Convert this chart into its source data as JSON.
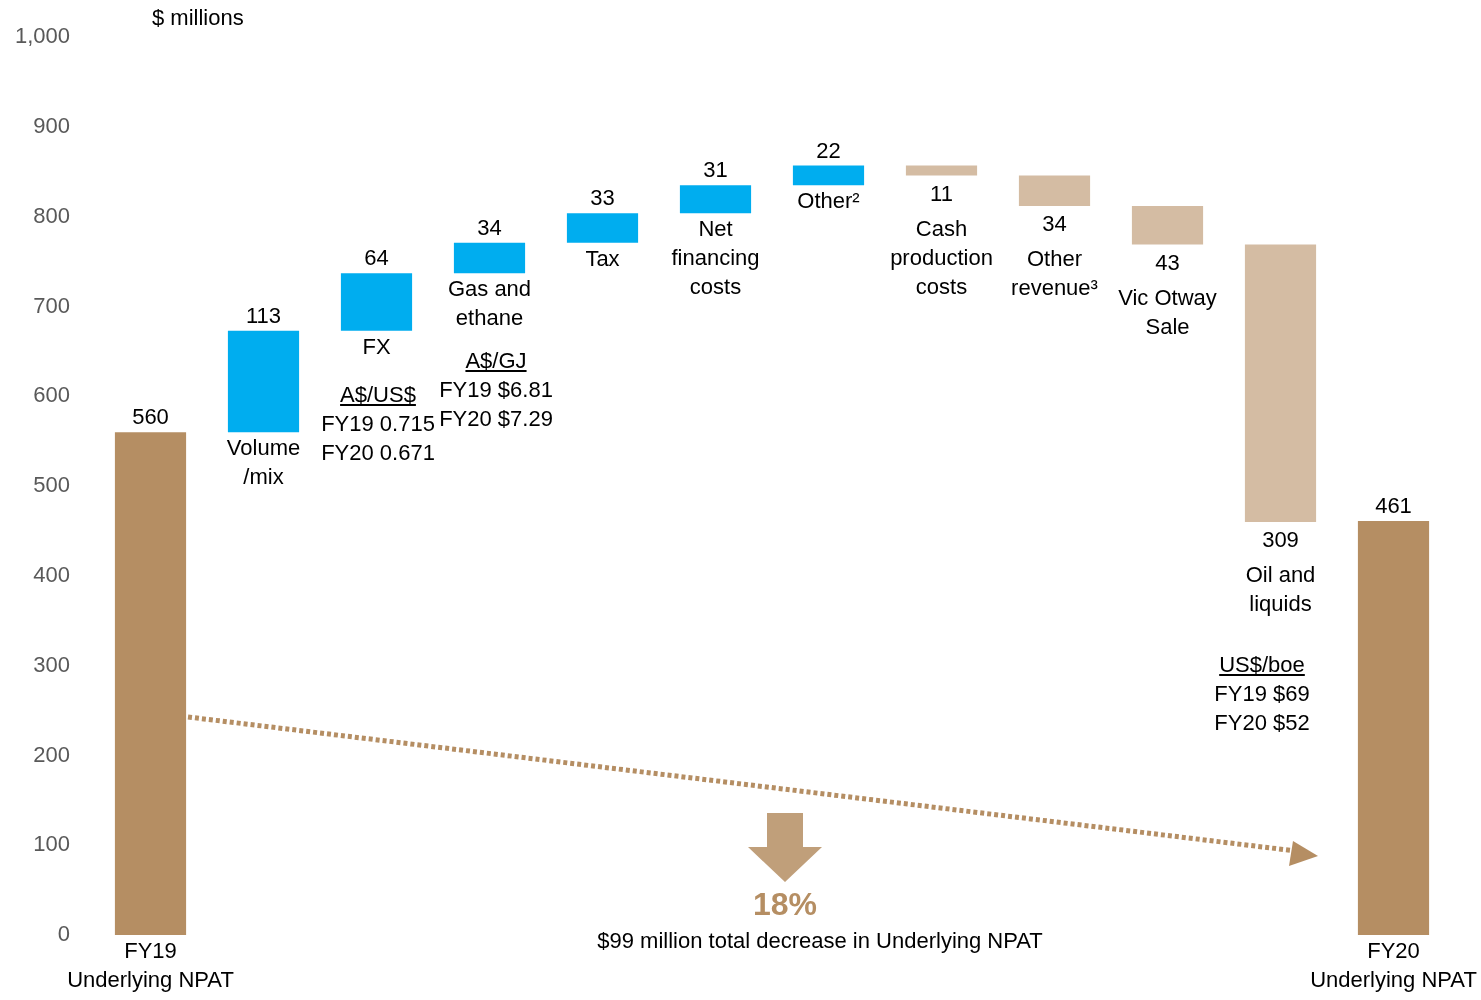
{
  "chart_data": {
    "type": "bar",
    "ylabel": "$ millions",
    "categories": [
      "FY19\nUnderlying NPAT",
      "Volume\n/mix",
      "FX",
      "Gas and\nethane",
      "Tax",
      "Net\nfinancing\ncosts",
      "Other²",
      "Cash\nproduction\ncosts",
      "Other\nrevenue³",
      "Vic Otway\nSale",
      "Oil and\nliquids",
      "FY20\nUnderlying NPAT"
    ],
    "values": [
      560,
      113,
      64,
      34,
      33,
      31,
      22,
      -11,
      -34,
      -43,
      -309,
      461
    ],
    "base": [
      0,
      560,
      673,
      737,
      771,
      804,
      835,
      857,
      846,
      812,
      769,
      0
    ],
    "colors": [
      "#b58e63",
      "#00adef",
      "#00adef",
      "#00adef",
      "#00adef",
      "#00adef",
      "#00adef",
      "#d4bca3",
      "#d4bca3",
      "#d4bca3",
      "#d4bca3",
      "#b58e63"
    ],
    "value_labels": [
      "560",
      "113",
      "64",
      "34",
      "33",
      "31",
      "22",
      "11",
      "34",
      "43",
      "309",
      "461"
    ],
    "ylim": [
      0,
      1000
    ],
    "yticks": [
      0,
      100,
      200,
      300,
      400,
      500,
      600,
      700,
      800,
      900,
      {
        "value": 1000,
        "label": "1,000"
      }
    ],
    "annotations": [
      "18%",
      "$99 million total decrease in Underlying NPAT",
      "A$/US$\nFY19 0.715\nFY20 0.671",
      "A$/GJ\nFY19 $6.81\nFY20 $7.29",
      "US$/boe\nFY19 $69\nFY20 $52"
    ]
  }
}
